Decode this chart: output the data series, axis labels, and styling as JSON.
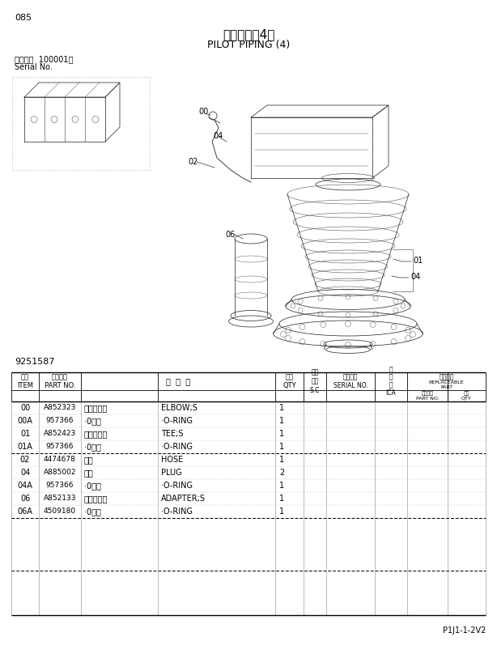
{
  "page_number": "085",
  "title_cn": "先导配管（4）",
  "title_en": "PILOT PIPING (4)",
  "serial_label_cn": "适用机号  100001～",
  "serial_label_en": "Serial No.",
  "drawing_number": "9251587",
  "page_id": "P1J1-1-2V2",
  "bg_color": "#ffffff",
  "table_rows": [
    [
      "00",
      "A852323",
      "直角管接头",
      "ELBOW;S",
      "1"
    ],
    [
      "00A",
      "957366",
      "·0形圈",
      "·O-RING",
      "1"
    ],
    [
      "01",
      "A852423",
      "三通管接头",
      "TEE;S",
      "1"
    ],
    [
      "01A",
      "957366",
      "·0形圈",
      "·O-RING",
      "1"
    ],
    [
      "02",
      "4474678",
      "软管",
      "HOSE",
      "1"
    ],
    [
      "04",
      "A885002",
      "螺塞",
      "PLUG",
      "2"
    ],
    [
      "04A",
      "957366",
      "·0形圈",
      "·O-RING",
      "1"
    ],
    [
      "06",
      "A852133",
      "直通管接头",
      "ADAPTER;S",
      "1"
    ],
    [
      "06A",
      "4509180",
      "·0形圈",
      "·O-RING",
      "1"
    ]
  ],
  "separator_after_row": 4
}
